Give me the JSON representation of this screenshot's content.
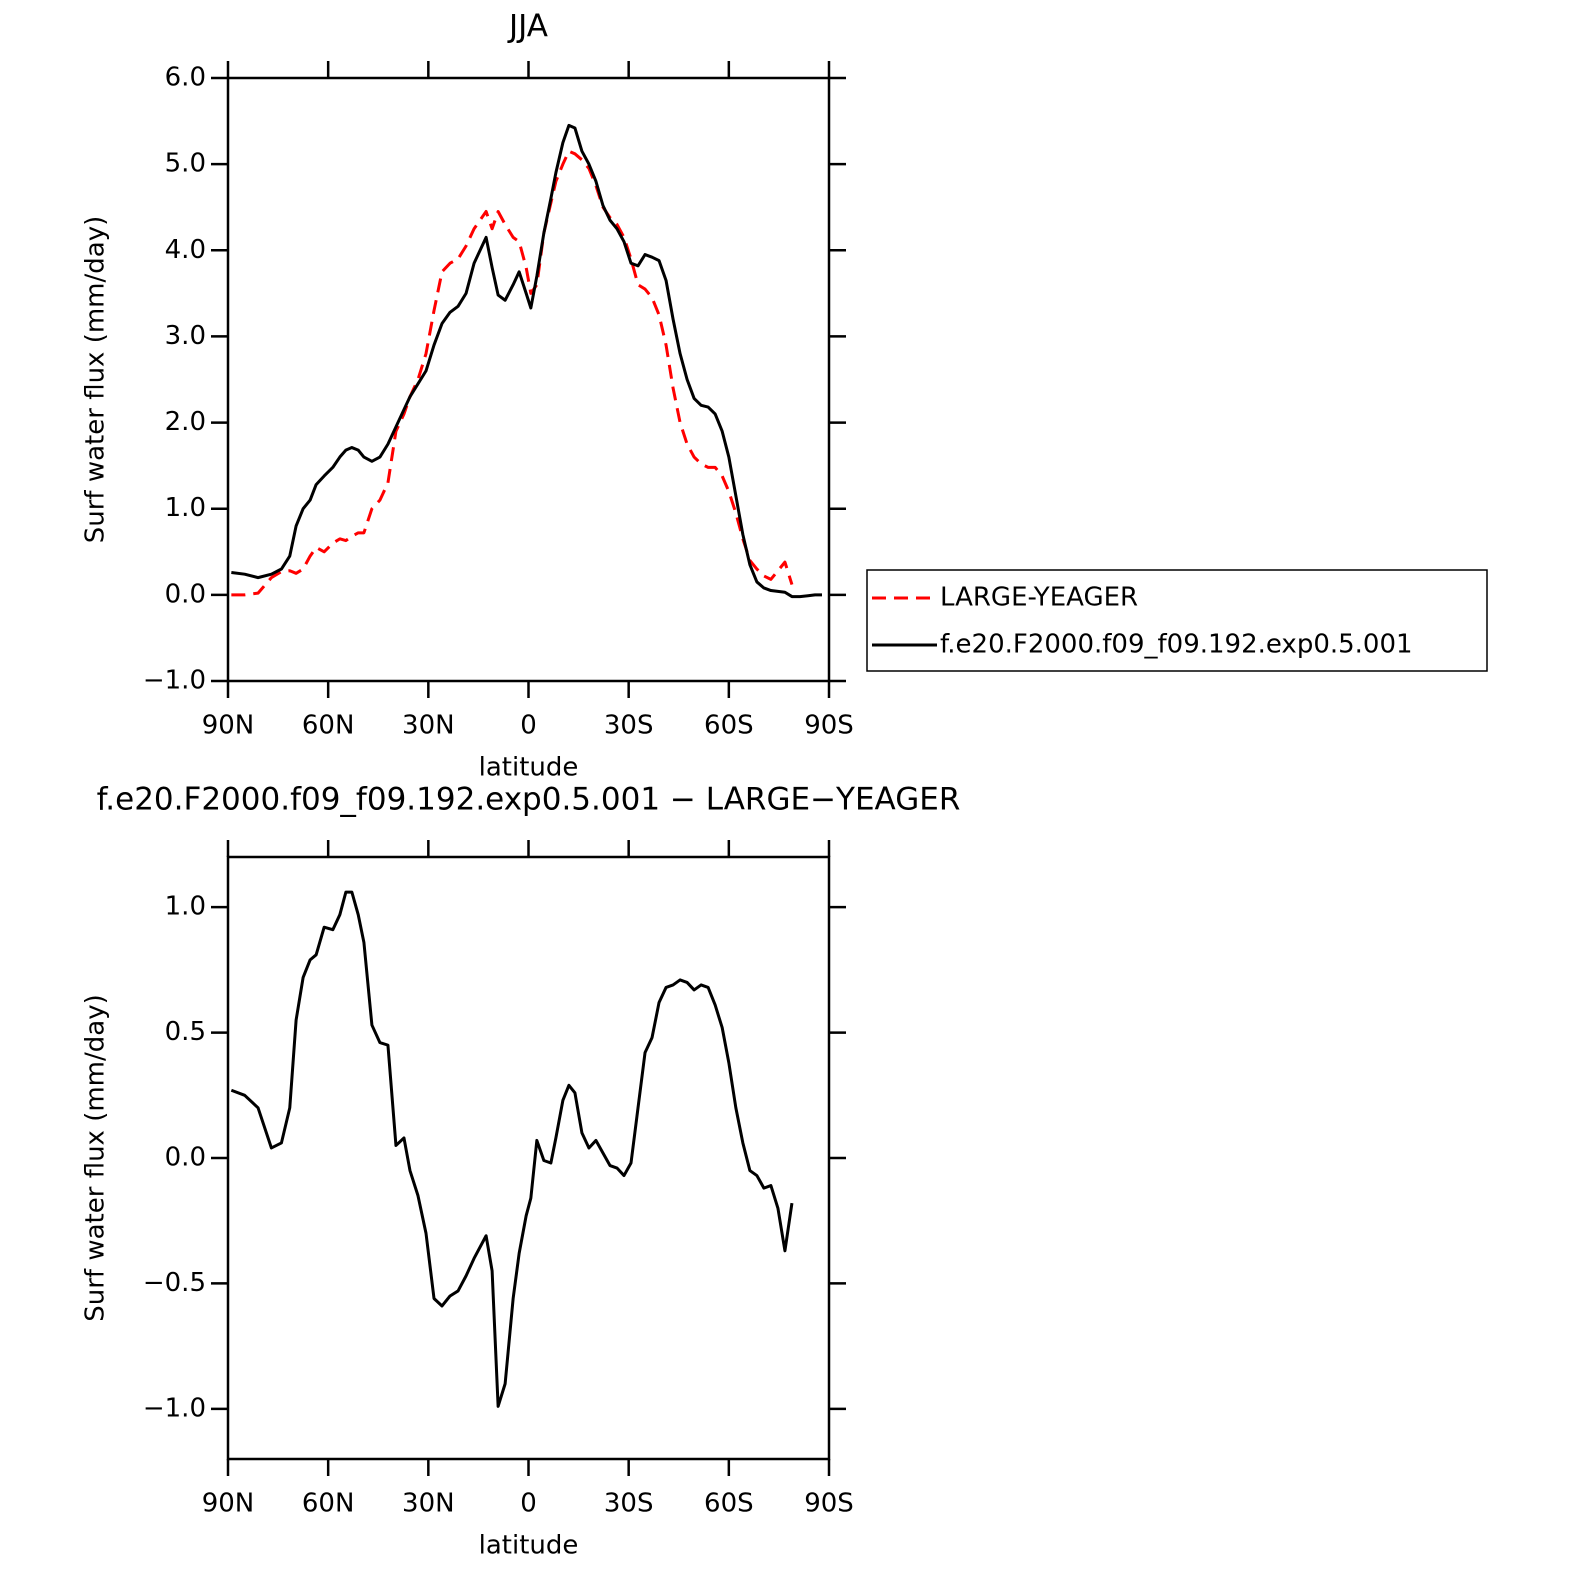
{
  "chart_data": [
    {
      "type": "line",
      "title": "JJA",
      "xlabel": "latitude",
      "ylabel": "Surf water flux (mm/day)",
      "x": [
        89,
        85,
        81,
        77,
        74,
        71.5,
        69.6,
        67.5,
        65.4,
        63.6,
        61.2,
        58.6,
        56.5,
        54.7,
        52.9,
        51,
        49.3,
        46.9,
        44.5,
        42.1,
        39.7,
        37.3,
        35.5,
        33.1,
        30.7,
        28.3,
        25.9,
        23.5,
        21.1,
        18.7,
        16.3,
        12.7,
        10.9,
        9.1,
        7,
        4.6,
        2.8,
        0.7,
        -0.7,
        -2.5,
        -4.6,
        -6.7,
        -8.2,
        -10.3,
        -12.1,
        -13.9,
        -16,
        -18.1,
        -20.2,
        -22.3,
        -24.4,
        -26.5,
        -28.6,
        -30.7,
        -32.8,
        -34.9,
        -37,
        -39.1,
        -41.2,
        -43.3,
        -45.4,
        -47.5,
        -49.6,
        -51.7,
        -53.8,
        -55.9,
        -58,
        -60,
        -62.1,
        -64.2,
        -66.3,
        -68.4,
        -70.5,
        -72.6,
        -74.7,
        -76.8,
        -78.9,
        -81.3,
        -83.7,
        -85.8,
        -87.9
      ],
      "series": [
        {
          "name": "LARGE-YEAGER",
          "color": "#ff0000",
          "style": "dashed",
          "values": [
            0,
            0,
            0.02,
            0.2,
            0.27,
            0.28,
            0.25,
            0.3,
            0.45,
            0.55,
            0.5,
            0.6,
            0.65,
            0.63,
            0.68,
            0.72,
            0.72,
            1.0,
            1.1,
            1.3,
            1.9,
            2.1,
            2.3,
            2.5,
            2.8,
            3.3,
            3.75,
            3.85,
            3.9,
            4.05,
            4.25,
            4.45,
            4.25,
            4.45,
            4.3,
            4.15,
            4.1,
            3.8,
            3.5,
            3.6,
            4.2,
            4.55,
            4.8,
            5.0,
            5.15,
            5.12,
            5.05,
            4.95,
            4.75,
            4.5,
            4.38,
            4.3,
            4.15,
            3.9,
            3.6,
            3.55,
            3.45,
            3.25,
            2.9,
            2.4,
            2.0,
            1.75,
            1.6,
            1.52,
            1.48,
            1.48,
            1.38,
            1.2,
            0.95,
            0.65,
            0.4,
            0.3,
            0.22,
            0.18,
            0.28,
            0.38,
            0.12,
            null,
            null,
            null,
            null
          ]
        },
        {
          "name": "f.e20.F2000.f09_f09.192.exp0.5.001",
          "color": "#000000",
          "style": "solid",
          "values": [
            0.26,
            0.24,
            0.2,
            0.24,
            0.3,
            0.45,
            0.8,
            1.0,
            1.1,
            1.28,
            1.38,
            1.48,
            1.6,
            1.68,
            1.71,
            1.68,
            1.6,
            1.55,
            1.6,
            1.75,
            1.95,
            2.15,
            2.3,
            2.45,
            2.6,
            2.9,
            3.15,
            3.28,
            3.35,
            3.5,
            3.85,
            4.15,
            3.8,
            3.48,
            3.42,
            3.6,
            3.75,
            3.5,
            3.33,
            3.7,
            4.2,
            4.6,
            4.9,
            5.25,
            5.45,
            5.42,
            5.15,
            5.0,
            4.8,
            4.52,
            4.35,
            4.25,
            4.1,
            3.85,
            3.82,
            3.95,
            3.92,
            3.88,
            3.65,
            3.2,
            2.8,
            2.5,
            2.28,
            2.2,
            2.18,
            2.1,
            1.9,
            1.6,
            1.15,
            0.7,
            0.35,
            0.15,
            0.08,
            0.05,
            0.04,
            0.03,
            -0.02,
            -0.02,
            -0.01,
            0,
            0
          ]
        }
      ],
      "xlim": [
        90,
        -90
      ],
      "xticks": [
        {
          "value": 90,
          "label": "90N"
        },
        {
          "value": 60,
          "label": "60N"
        },
        {
          "value": 30,
          "label": "30N"
        },
        0,
        {
          "value": -30,
          "label": "30S"
        },
        {
          "value": -60,
          "label": "60S"
        },
        {
          "value": -90,
          "label": "90S"
        }
      ],
      "ylim": [
        -1,
        6
      ],
      "yticks": [
        {
          "value": -1,
          "label": "−1.0"
        },
        {
          "value": 0,
          "label": "0.0"
        },
        {
          "value": 1,
          "label": "1.0"
        },
        {
          "value": 2,
          "label": "2.0"
        },
        {
          "value": 3,
          "label": "3.0"
        },
        {
          "value": 4,
          "label": "4.0"
        },
        {
          "value": 5,
          "label": "5.0"
        },
        {
          "value": 6,
          "label": "6.0"
        }
      ],
      "legend": "right"
    },
    {
      "type": "line",
      "title": "f.e20.F2000.f09_f09.192.exp0.5.001 − LARGE−YEAGER",
      "xlabel": "latitude",
      "ylabel": "Surf water flux (mm/day)",
      "x": [
        89,
        85,
        81,
        77,
        74,
        71.5,
        69.6,
        67.5,
        65.4,
        63.6,
        61.2,
        58.6,
        56.5,
        54.7,
        52.9,
        51,
        49.3,
        46.9,
        44.5,
        42.1,
        39.7,
        37.3,
        35.5,
        33.1,
        30.7,
        28.3,
        25.9,
        23.5,
        21.1,
        18.7,
        16.3,
        12.7,
        10.9,
        9.1,
        7,
        4.6,
        2.8,
        0.7,
        -0.7,
        -2.5,
        -4.6,
        -6.7,
        -8.2,
        -10.3,
        -12.1,
        -13.9,
        -16,
        -18.1,
        -20.2,
        -22.3,
        -24.4,
        -26.5,
        -28.6,
        -30.7,
        -32.8,
        -34.9,
        -37,
        -39.1,
        -41.2,
        -43.3,
        -45.4,
        -47.5,
        -49.6,
        -51.7,
        -53.8,
        -55.9,
        -58,
        -60,
        -62.1,
        -64.2,
        -66.3,
        -68.4,
        -70.5,
        -72.6,
        -74.7,
        -76.8,
        -78.9,
        -81.3,
        -83.7,
        -85.8,
        -87.9
      ],
      "values": [
        0.27,
        0.25,
        0.2,
        0.04,
        0.06,
        0.2,
        0.55,
        0.72,
        0.79,
        0.81,
        0.92,
        0.91,
        0.97,
        1.06,
        1.06,
        0.97,
        0.86,
        0.53,
        0.46,
        0.45,
        0.05,
        0.08,
        -0.05,
        -0.15,
        -0.3,
        -0.56,
        -0.59,
        -0.55,
        -0.53,
        -0.47,
        -0.4,
        -0.31,
        -0.45,
        -0.99,
        -0.9,
        -0.56,
        -0.38,
        -0.23,
        -0.16,
        0.07,
        -0.01,
        -0.02,
        0.08,
        0.23,
        0.29,
        0.26,
        0.1,
        0.04,
        0.07,
        0.02,
        -0.03,
        -0.04,
        -0.07,
        -0.02,
        0.2,
        0.42,
        0.48,
        0.62,
        0.68,
        0.69,
        0.71,
        0.7,
        0.67,
        0.69,
        0.68,
        0.61,
        0.52,
        0.38,
        0.2,
        0.06,
        -0.05,
        -0.07,
        -0.12,
        -0.11,
        -0.2,
        -0.37,
        -0.18,
        null,
        null,
        null,
        null
      ],
      "color": "#000000",
      "xlim": [
        90,
        -90
      ],
      "xticks": [
        {
          "value": 90,
          "label": "90N"
        },
        {
          "value": 60,
          "label": "60N"
        },
        {
          "value": 30,
          "label": "30N"
        },
        0,
        {
          "value": -30,
          "label": "30S"
        },
        {
          "value": -60,
          "label": "60S"
        },
        {
          "value": -90,
          "label": "90S"
        }
      ],
      "ylim": [
        -1.2,
        1.2
      ],
      "yticks": [
        {
          "value": -1,
          "label": "−1.0"
        },
        {
          "value": -0.5,
          "label": "−0.5"
        },
        {
          "value": 0,
          "label": "0.0"
        },
        {
          "value": 0.5,
          "label": "0.5"
        },
        {
          "value": 1,
          "label": "1.0"
        }
      ]
    }
  ]
}
